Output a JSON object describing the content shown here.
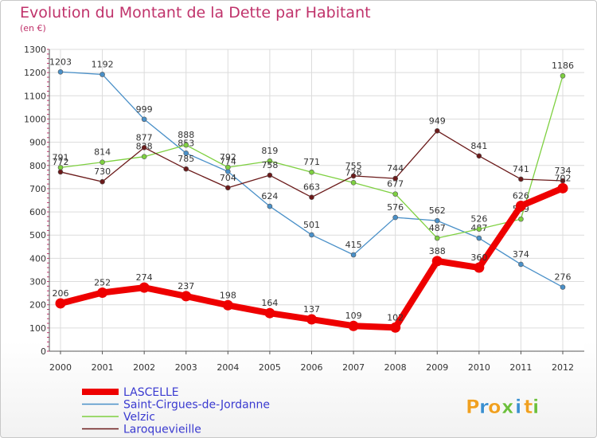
{
  "header": {
    "title": "Evolution du Montant de la Dette par Habitant",
    "subtitle": "(en €)"
  },
  "logo": {
    "letters": [
      "P",
      "r",
      "o",
      "x",
      "i",
      "t",
      "i"
    ],
    "colors": [
      "#f0a020",
      "#3a8fd0",
      "#f0a020",
      "#6cbf3c",
      "#3a8fd0",
      "#f0a020",
      "#6cbf3c"
    ]
  },
  "chart_data": {
    "type": "line",
    "title": "Evolution du Montant de la Dette par Habitant",
    "ylabel": "(en €)",
    "xlabel": "",
    "x": [
      "2000",
      "2001",
      "2002",
      "2003",
      "2004",
      "2005",
      "2006",
      "2007",
      "2008",
      "2009",
      "2010",
      "2011",
      "2012"
    ],
    "ylim": [
      0,
      1300
    ],
    "yticks": [
      0,
      100,
      200,
      300,
      400,
      500,
      600,
      700,
      800,
      900,
      1000,
      1100,
      1200,
      1300
    ],
    "grid": true,
    "legend_position": "bottom-left",
    "series": [
      {
        "name": "Saint-Cirgues-de-Jordanne",
        "color": "#4a90c8",
        "values": [
          1203,
          1192,
          999,
          853,
          774,
          624,
          501,
          415,
          576,
          562,
          487,
          374,
          276
        ]
      },
      {
        "name": "Velzic",
        "color": "#7ed040",
        "values": [
          791,
          814,
          838,
          888,
          792,
          819,
          771,
          726,
          677,
          487,
          526,
          569,
          1186
        ]
      },
      {
        "name": "Laroquevieille",
        "color": "#6b1a1a",
        "values": [
          772,
          730,
          877,
          785,
          704,
          758,
          663,
          755,
          744,
          949,
          841,
          741,
          734
        ]
      },
      {
        "name": "LASCELLE",
        "color": "#ee0000",
        "values": [
          206,
          252,
          274,
          237,
          198,
          164,
          137,
          109,
          102,
          388,
          360,
          626,
          702
        ]
      }
    ]
  }
}
